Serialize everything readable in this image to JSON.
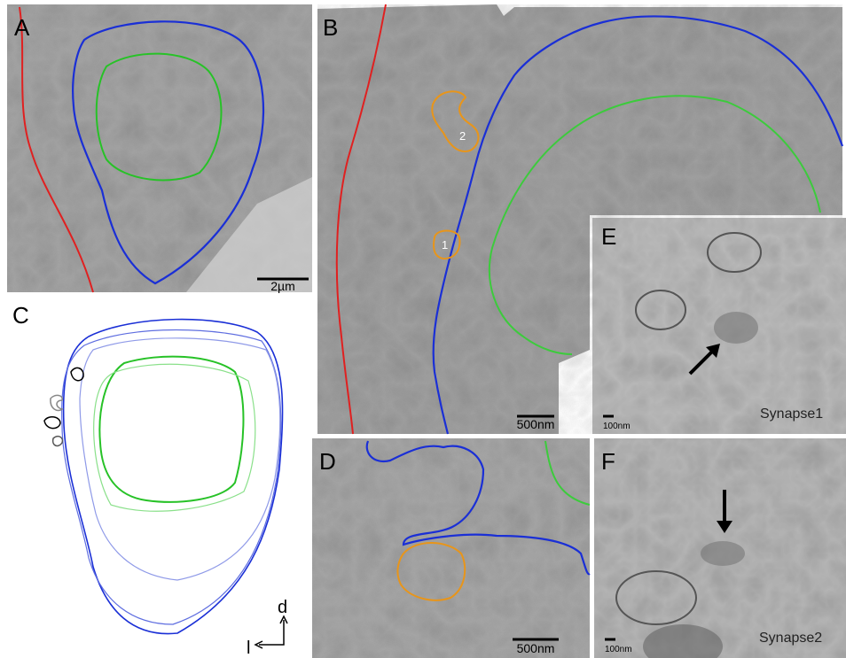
{
  "panels": [
    {
      "label": "A",
      "scale_bar": "2µm"
    },
    {
      "label": "B",
      "scale_bar": "500nm",
      "contours": [
        "1",
        "2"
      ]
    },
    {
      "label": "C",
      "axes": [
        "d",
        "l"
      ]
    },
    {
      "label": "D",
      "scale_bar": "500nm"
    },
    {
      "label": "E",
      "scale_bar": "100nm",
      "caption": "Synapse1"
    },
    {
      "label": "F",
      "scale_bar": "100nm",
      "caption": "Synapse2"
    }
  ]
}
